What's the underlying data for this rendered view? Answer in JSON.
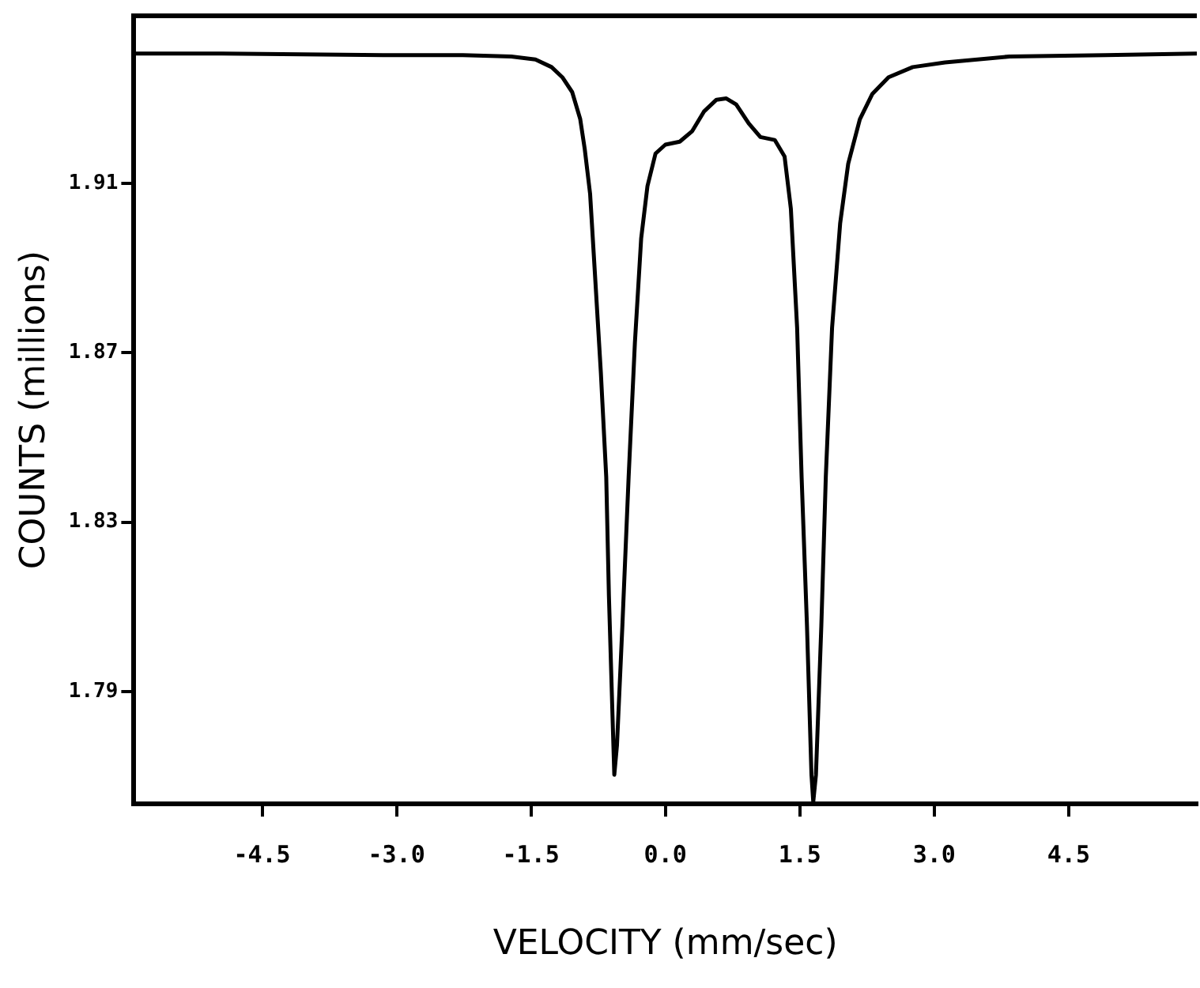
{
  "chart_data": {
    "type": "line",
    "xlabel": "VELOCITY (mm/sec)",
    "ylabel": "COUNTS (millions)",
    "xlim": [
      -5.93,
      5.93
    ],
    "ylim": [
      1.7635,
      1.9495
    ],
    "xticks": [
      -4.5,
      {
        "value": -3,
        "label": "-3.0"
      },
      -1.5,
      {
        "value": 0,
        "label": "0.0"
      },
      1.5,
      {
        "value": 3,
        "label": "3.0"
      },
      4.5
    ],
    "yticks": [
      1.79,
      1.83,
      1.87,
      1.91
    ],
    "grid": false,
    "legend": false,
    "marker": "none",
    "line_style": "solid",
    "series": [
      {
        "color": "#000000",
        "x": [
          -5.93,
          -4.95,
          -3.15,
          -2.26,
          -1.72,
          -1.45,
          -1.27,
          -1.15,
          -1.04,
          -0.95,
          -0.9,
          -0.84,
          -0.79,
          -0.72,
          -0.66,
          -0.63,
          -0.59,
          -0.57,
          -0.54,
          -0.48,
          -0.41,
          -0.34,
          -0.27,
          -0.2,
          -0.11,
          0.0,
          0.16,
          0.3,
          0.43,
          0.57,
          0.68,
          0.79,
          0.93,
          1.06,
          1.22,
          1.33,
          1.4,
          1.47,
          1.52,
          1.58,
          1.63,
          1.65,
          1.68,
          1.74,
          1.79,
          1.86,
          1.95,
          2.04,
          2.17,
          2.31,
          2.49,
          2.76,
          3.12,
          3.84,
          4.91,
          5.93
        ],
        "values": [
          1.9406,
          1.9406,
          1.9402,
          1.9402,
          1.9399,
          1.9392,
          1.9374,
          1.935,
          1.9315,
          1.9251,
          1.9181,
          1.9075,
          1.89,
          1.8653,
          1.8407,
          1.8126,
          1.7844,
          1.7704,
          1.7774,
          1.8055,
          1.8407,
          1.8724,
          1.897,
          1.9093,
          1.917,
          1.9191,
          1.9198,
          1.9223,
          1.9269,
          1.9297,
          1.93,
          1.9286,
          1.9241,
          1.9209,
          1.9202,
          1.9163,
          1.904,
          1.8759,
          1.8407,
          1.8055,
          1.7704,
          1.764,
          1.7704,
          1.8055,
          1.8407,
          1.8759,
          1.9005,
          1.9146,
          1.9251,
          1.9311,
          1.935,
          1.9374,
          1.9385,
          1.9399,
          1.9402,
          1.9406
        ]
      }
    ]
  }
}
